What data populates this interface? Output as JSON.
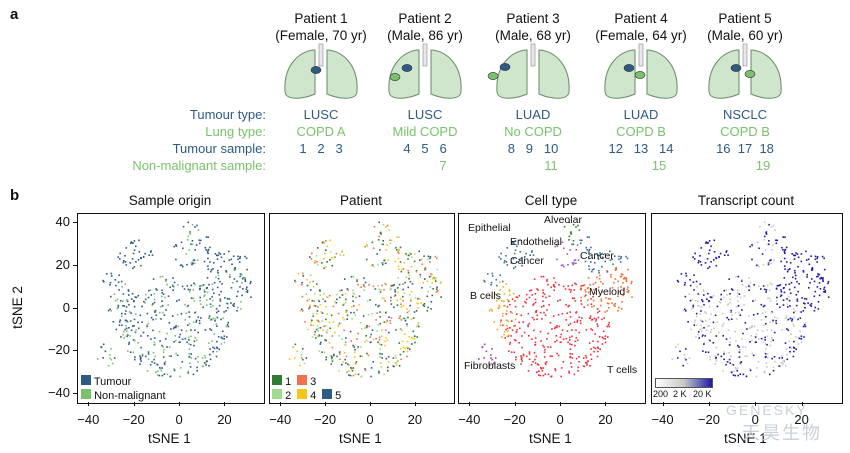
{
  "panel_a": {
    "letter": "a",
    "patients": [
      {
        "name": "Patient 1",
        "info": "(Female, 70 yr)",
        "tumour_type": "LUSC",
        "lung_type": "COPD A",
        "tumour_samples": "1   2   3",
        "non_malignant": ""
      },
      {
        "name": "Patient 2",
        "info": "(Male, 86 yr)",
        "tumour_type": "LUSC",
        "lung_type": "Mild COPD",
        "tumour_samples": "4   5   6",
        "non_malignant": "7"
      },
      {
        "name": "Patient 3",
        "info": "(Male, 68 yr)",
        "tumour_type": "LUAD",
        "lung_type": "No COPD",
        "tumour_samples": "8   9   10",
        "non_malignant": "11"
      },
      {
        "name": "Patient 4",
        "info": "(Female, 64 yr)",
        "tumour_type": "LUAD",
        "lung_type": "COPD B",
        "tumour_samples": "12   13   14",
        "non_malignant": "15"
      },
      {
        "name": "Patient 5",
        "info": "(Male, 60 yr)",
        "tumour_type": "NSCLC",
        "lung_type": "COPD B",
        "tumour_samples": "16  17  18",
        "non_malignant": "19"
      }
    ],
    "row_labels": {
      "tumour_type": "Tumour type:",
      "lung_type": "Lung type:",
      "tumour_sample": "Tumour sample:",
      "non_malignant_sample": "Non-malignant sample:"
    }
  },
  "panel_b": {
    "letter": "b",
    "y_axis_title": "tSNE 2",
    "x_axis_title": "tSNE 1",
    "y_ticks": [
      "40",
      "20",
      "0",
      "−20",
      "−40"
    ],
    "x_ticks": [
      "−40",
      "−20",
      "0",
      "20"
    ],
    "plots": [
      {
        "title": "Sample origin",
        "legend": [
          {
            "label": "Tumour",
            "color": "#2e5a84"
          },
          {
            "label": "Non-malignant",
            "color": "#79c26b"
          }
        ]
      },
      {
        "title": "Patient",
        "legend": [
          {
            "label": "1",
            "color": "#2e7d32"
          },
          {
            "label": "3",
            "color": "#f07050"
          },
          {
            "label": "2",
            "color": "#9cdc8c"
          },
          {
            "label": "4",
            "color": "#f5c518"
          },
          {
            "label": "5",
            "color": "#2e5a84"
          }
        ]
      },
      {
        "title": "Cell type",
        "labels": [
          "Epithelial",
          "Alveolar",
          "Endothelial",
          "Cancer",
          "Cancer",
          "B cells",
          "Myeloid",
          "Fibroblasts",
          "T cells"
        ]
      },
      {
        "title": "Transcript count",
        "colorbar": {
          "ticks": [
            "200",
            "2 K",
            "20 K"
          ]
        }
      }
    ]
  },
  "watermark": {
    "brand": "GENESKY",
    "cn": "天昊生物"
  },
  "colors": {
    "tumour": "#2e5a84",
    "non_malignant": "#79c26b",
    "tcell": "#e8303a",
    "myeloid": "#f07030",
    "bcell": "#f5a623",
    "fibro": "#9b3fb5",
    "cancer": "#3a6fa0",
    "alveolar": "#2e7d32",
    "endo": "#9b59b6",
    "tc_low": "#c8c8c8",
    "tc_high": "#1a1aa8"
  }
}
